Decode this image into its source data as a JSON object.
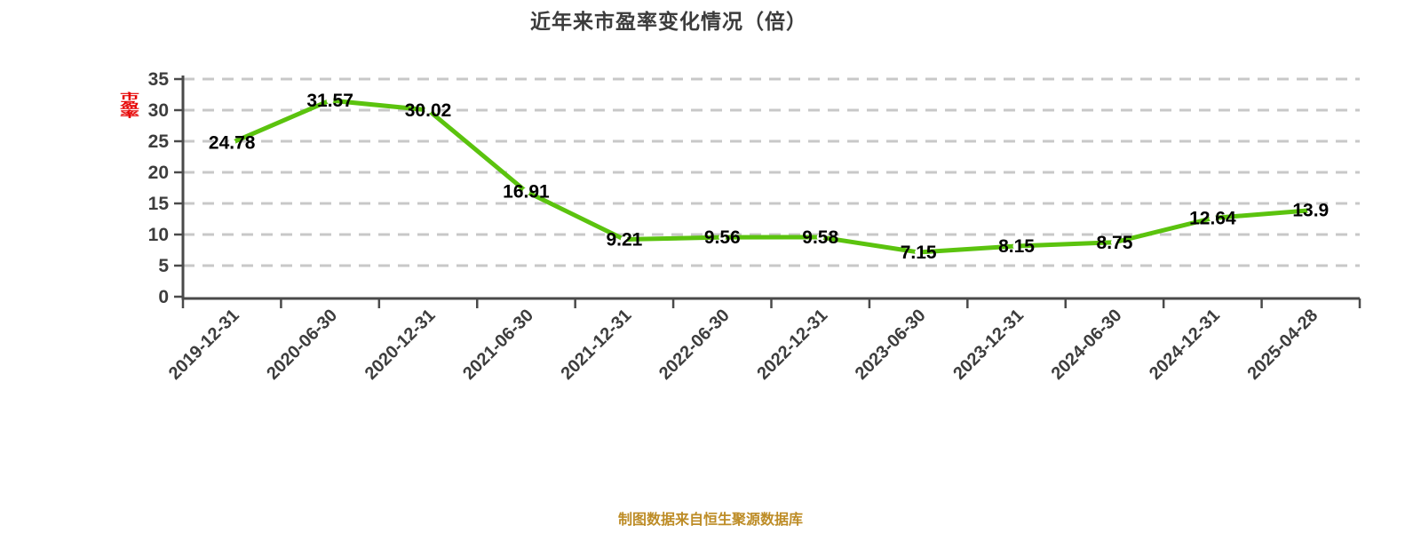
{
  "title": "近年来市盈率变化情况（倍）",
  "y_axis_unit_label": {
    "text": "市盈率",
    "color": "#e60000"
  },
  "footer": {
    "text": "制图数据来自恒生聚源数据库",
    "color": "#bd8c26"
  },
  "chart_data": {
    "type": "line",
    "title": "近年来市盈率变化情况（倍）",
    "categories": [
      "2019-12-31",
      "2020-06-30",
      "2020-12-31",
      "2021-06-30",
      "2021-12-31",
      "2022-06-30",
      "2022-12-31",
      "2023-06-30",
      "2023-12-31",
      "2024-06-30",
      "2024-12-31",
      "2025-04-28"
    ],
    "values": [
      24.78,
      31.57,
      30.02,
      16.91,
      9.21,
      9.56,
      9.58,
      7.15,
      8.15,
      8.75,
      12.64,
      13.9
    ],
    "point_labels": [
      "24.78",
      "31.57",
      "30.02",
      "16.91",
      "9.21",
      "9.56",
      "9.58",
      "7.15",
      "8.15",
      "8.75",
      "12.64",
      "13.9"
    ],
    "xlabel": "",
    "ylabel": "市盈率",
    "ylim": [
      0,
      35
    ],
    "yticks": [
      0,
      5,
      10,
      15,
      20,
      25,
      30,
      35
    ],
    "x_label_rotation": 45,
    "grid": "horizontal-dashed",
    "legend": "none",
    "line_color": "#5bc30e",
    "marker_fill": "#ffffff",
    "grid_color": "#c8c8c8",
    "axis_color": "#4a4a4a",
    "tick_label_color": "#3d3d3d",
    "point_label_color": "#000000"
  }
}
